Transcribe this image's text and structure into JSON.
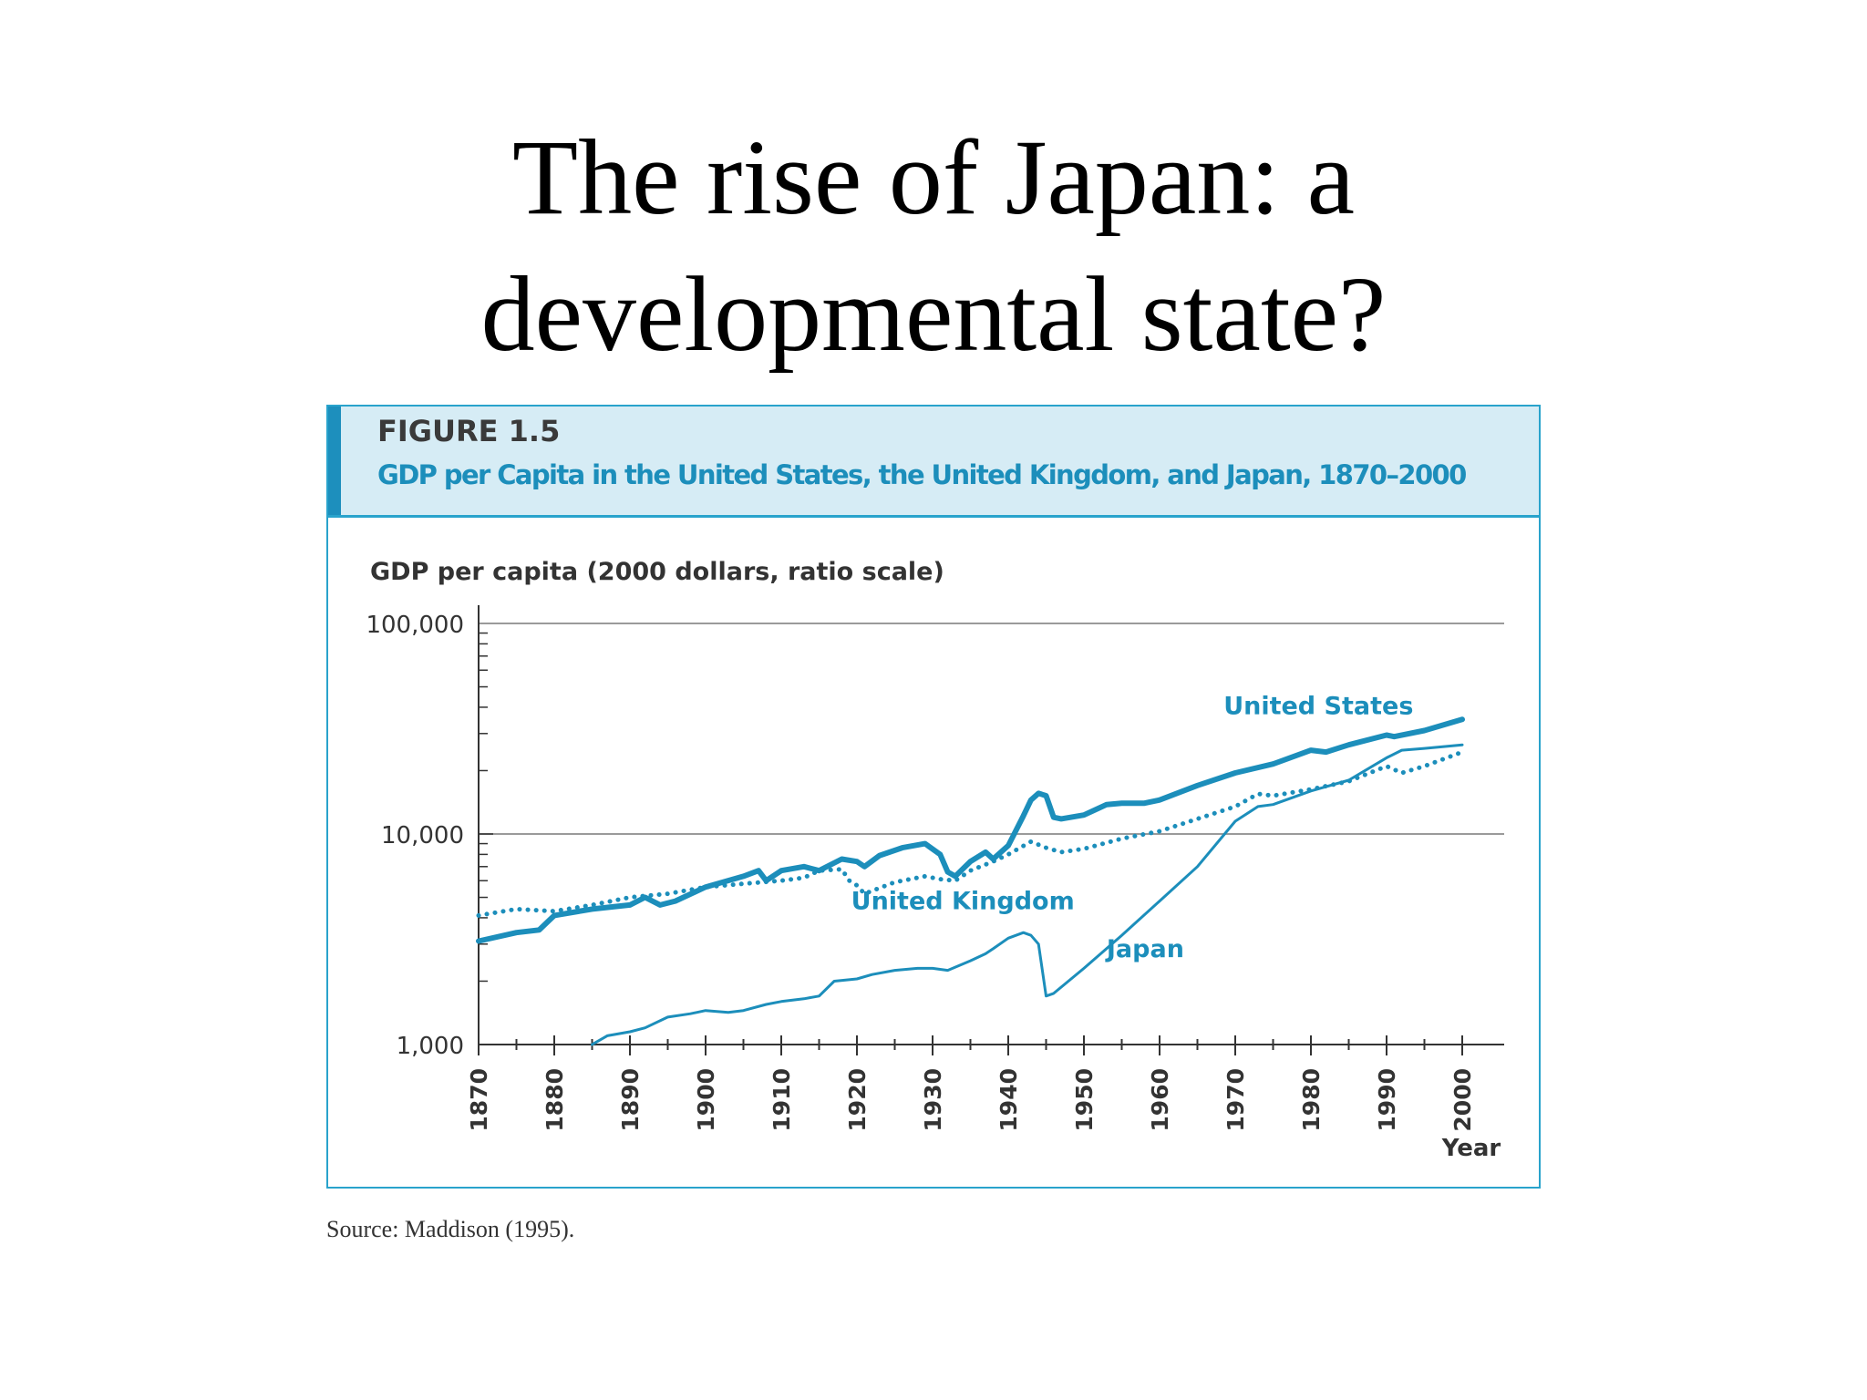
{
  "slide": {
    "title_line1": "The rise of Japan: a",
    "title_line2": "developmental state?"
  },
  "figure": {
    "number": "FIGURE 1.5",
    "caption": "GDP per Capita in the United States, the United Kingdom, and Japan, 1870–2000",
    "source": "Source: Maddison (1995)."
  },
  "colors": {
    "series": "#1c8ebb",
    "gridline": "#9a9a9a",
    "axis": "#333333",
    "text": "#333333"
  },
  "chart_data": {
    "type": "line",
    "title": "GDP per Capita in the United States, the United Kingdom, and Japan, 1870–2000",
    "ylabel": "GDP per capita (2000 dollars, ratio scale)",
    "xlabel": "Year",
    "yscale": "log",
    "ylim": [
      1000,
      100000
    ],
    "xlim": [
      1870,
      2000
    ],
    "yticks": [
      1000,
      10000,
      100000
    ],
    "ytick_labels": [
      "1,000",
      "10,000",
      "100,000"
    ],
    "xticks": [
      1870,
      1880,
      1890,
      1900,
      1910,
      1920,
      1930,
      1940,
      1950,
      1960,
      1970,
      1980,
      1990,
      2000
    ],
    "xtick_labels": [
      "1870",
      "1880",
      "1890",
      "1900",
      "1910",
      "1920",
      "1930",
      "1940",
      "1950",
      "1960",
      "1970",
      "1980",
      "1990",
      "2000"
    ],
    "gridlines_y": [
      10000,
      100000
    ],
    "series": [
      {
        "name": "United States",
        "style": "thick-solid",
        "label_position": "above",
        "x": [
          1870,
          1875,
          1878,
          1880,
          1885,
          1890,
          1892,
          1894,
          1896,
          1900,
          1905,
          1907,
          1908,
          1910,
          1913,
          1915,
          1918,
          1920,
          1921,
          1923,
          1926,
          1929,
          1931,
          1932,
          1933,
          1935,
          1937,
          1938,
          1940,
          1942,
          1943,
          1944,
          1945,
          1946,
          1947,
          1950,
          1953,
          1955,
          1958,
          1960,
          1965,
          1970,
          1975,
          1980,
          1982,
          1985,
          1990,
          1991,
          1995,
          2000
        ],
        "y": [
          3100,
          3400,
          3500,
          4100,
          4400,
          4600,
          5000,
          4600,
          4800,
          5600,
          6300,
          6700,
          6000,
          6700,
          7000,
          6700,
          7600,
          7400,
          7000,
          7900,
          8600,
          9000,
          8000,
          6600,
          6300,
          7400,
          8200,
          7600,
          8800,
          12200,
          14500,
          15600,
          15200,
          12000,
          11800,
          12300,
          13800,
          14000,
          14000,
          14500,
          17000,
          19500,
          21500,
          25000,
          24500,
          26500,
          29500,
          29000,
          31000,
          35000
        ]
      },
      {
        "name": "United Kingdom",
        "style": "dotted",
        "label_position": "below",
        "x": [
          1870,
          1875,
          1880,
          1885,
          1890,
          1895,
          1900,
          1905,
          1910,
          1913,
          1915,
          1918,
          1919,
          1920,
          1921,
          1925,
          1929,
          1931,
          1933,
          1935,
          1938,
          1940,
          1943,
          1945,
          1947,
          1950,
          1955,
          1960,
          1965,
          1970,
          1973,
          1975,
          1980,
          1985,
          1990,
          1992,
          1995,
          2000
        ],
        "y": [
          4100,
          4400,
          4300,
          4600,
          5000,
          5200,
          5600,
          5800,
          6000,
          6200,
          6700,
          6800,
          6000,
          5700,
          5200,
          5900,
          6300,
          6100,
          6000,
          6700,
          7400,
          8000,
          9200,
          8600,
          8200,
          8500,
          9500,
          10300,
          11800,
          13500,
          15500,
          15200,
          16300,
          17800,
          21000,
          19500,
          21000,
          24500
        ]
      },
      {
        "name": "Japan",
        "style": "thin-solid",
        "label_position": "right",
        "x": [
          1885,
          1887,
          1890,
          1892,
          1895,
          1898,
          1900,
          1903,
          1905,
          1908,
          1910,
          1913,
          1915,
          1917,
          1920,
          1922,
          1925,
          1928,
          1930,
          1932,
          1935,
          1937,
          1938,
          1940,
          1942,
          1943,
          1944,
          1945,
          1946,
          1950,
          1955,
          1960,
          1965,
          1970,
          1973,
          1975,
          1980,
          1985,
          1990,
          1992,
          1995,
          2000
        ],
        "y": [
          1000,
          1100,
          1150,
          1200,
          1350,
          1400,
          1450,
          1420,
          1450,
          1550,
          1600,
          1650,
          1700,
          2000,
          2050,
          2150,
          2250,
          2300,
          2300,
          2250,
          2500,
          2700,
          2850,
          3200,
          3400,
          3300,
          3000,
          1700,
          1750,
          2300,
          3300,
          4800,
          7000,
          11500,
          13500,
          13800,
          16000,
          18000,
          23000,
          25000,
          25500,
          26500
        ]
      }
    ]
  }
}
